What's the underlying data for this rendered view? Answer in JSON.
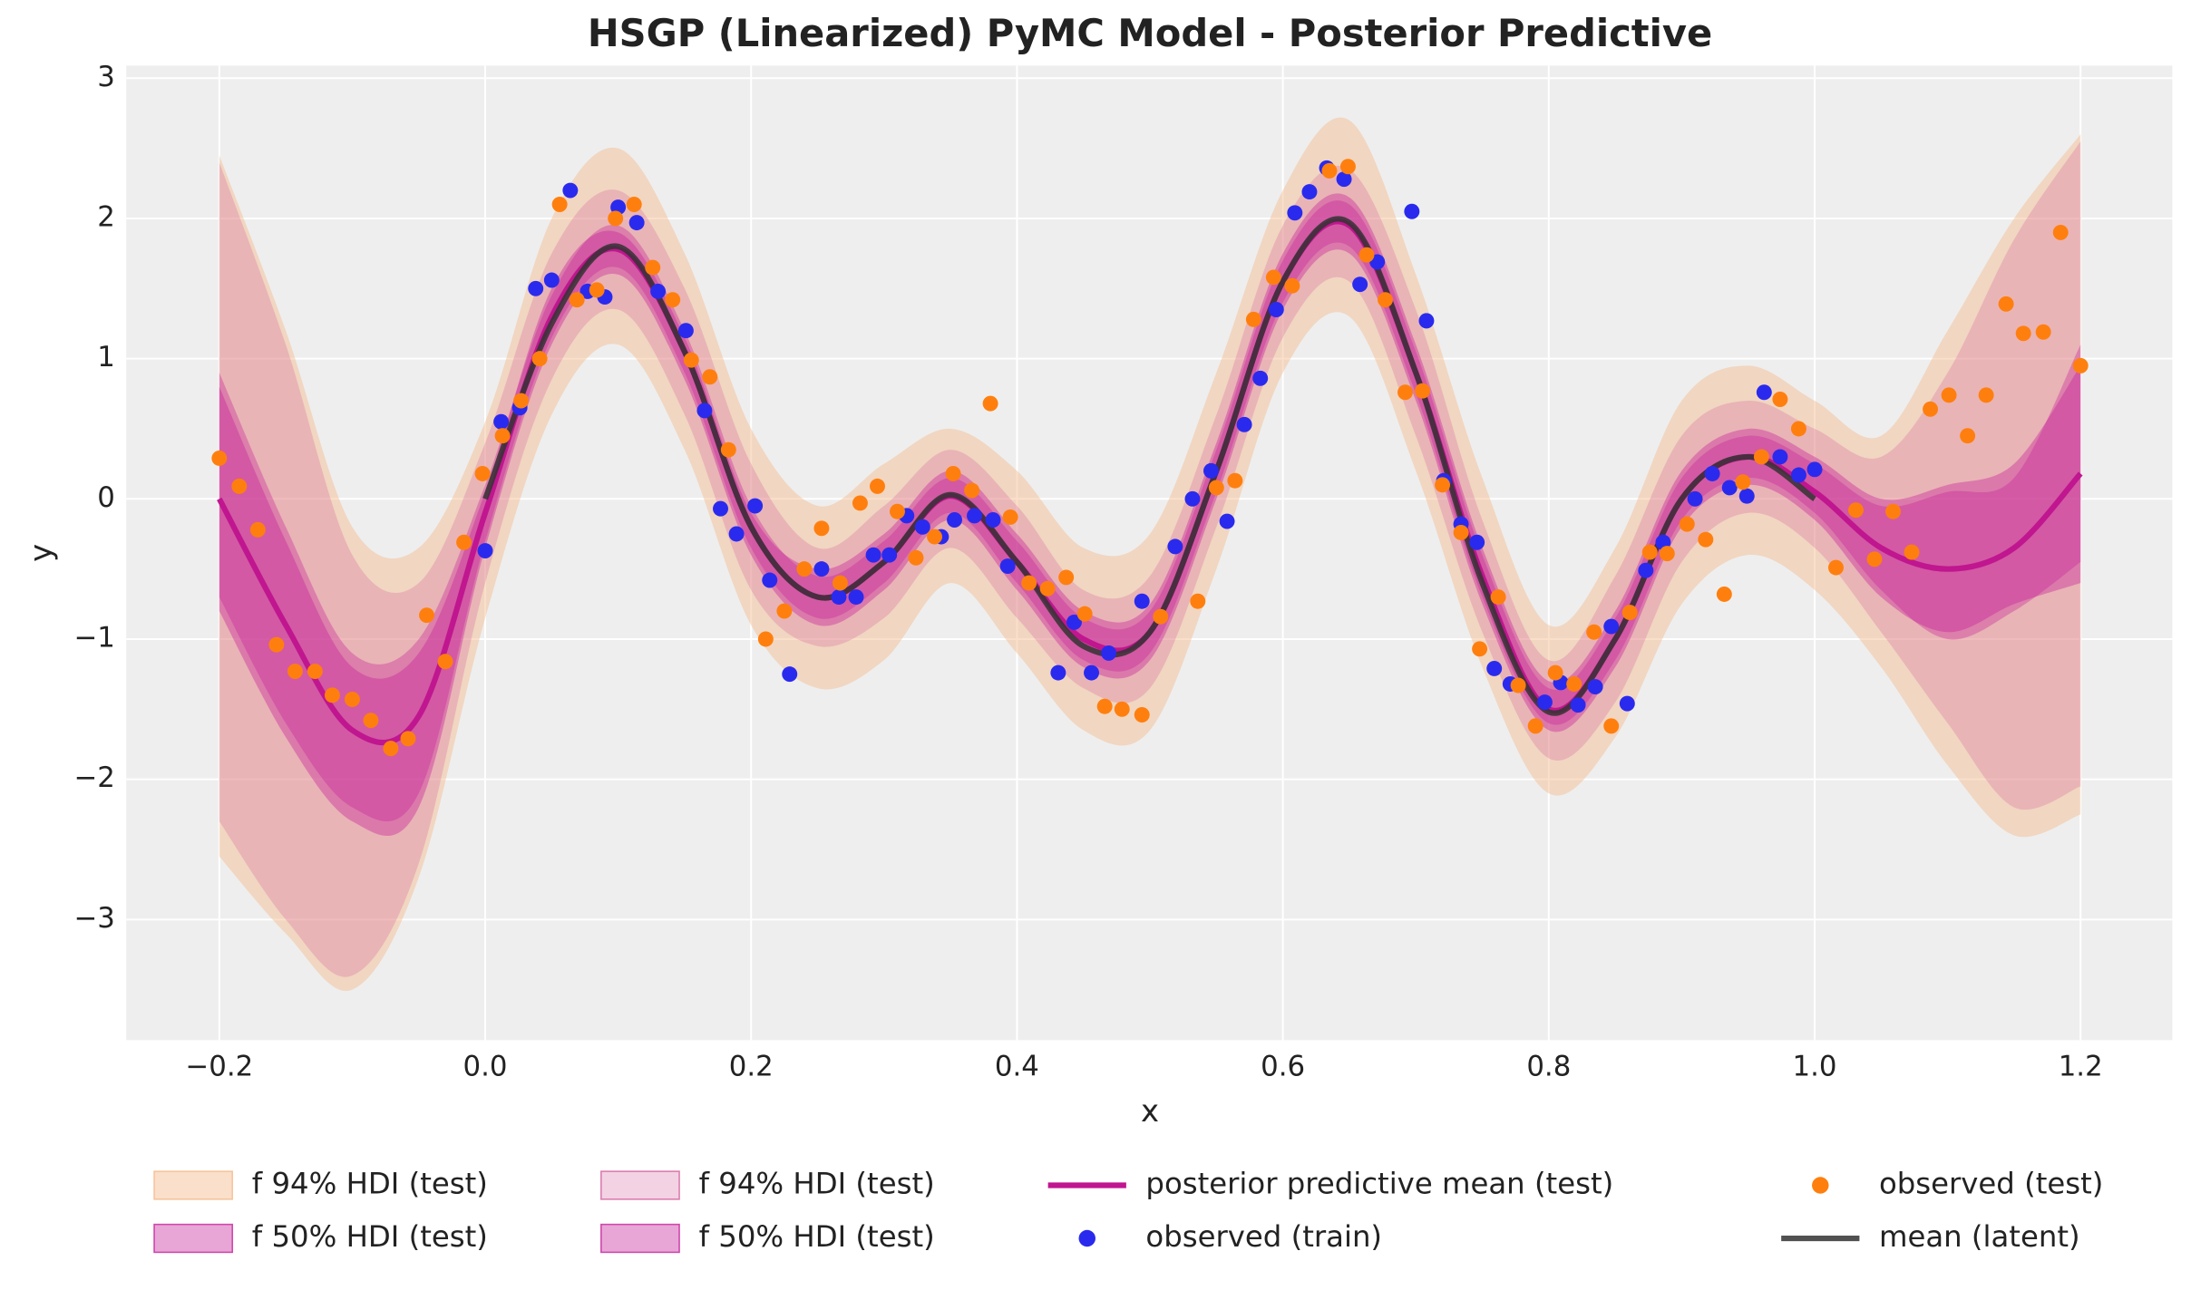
{
  "chart_data": {
    "type": "line",
    "title": "HSGP (Linearized) PyMC Model - Posterior Predictive",
    "xlabel": "x",
    "ylabel": "y",
    "xlim": [
      -0.27,
      1.269
    ],
    "ylim": [
      -3.86,
      3.09
    ],
    "xticks": [
      {
        "value": -0.2,
        "label": "−0.2"
      },
      {
        "value": 0,
        "label": "0.0"
      },
      0.2,
      0.4,
      0.6,
      0.8,
      {
        "value": 1,
        "label": "1.0"
      },
      1.2
    ],
    "yticks": [
      {
        "value": -3,
        "label": "−3"
      },
      {
        "value": -2,
        "label": "−2"
      },
      {
        "value": -1,
        "label": "−1"
      },
      0,
      1,
      2,
      3
    ],
    "grid": true,
    "legend": "bottom",
    "x": [
      -0.2,
      -0.15,
      -0.1,
      -0.05,
      0,
      0.05,
      0.1,
      0.15,
      0.2,
      0.25,
      0.3,
      0.35,
      0.4,
      0.45,
      0.5,
      0.55,
      0.6,
      0.65,
      0.7,
      0.75,
      0.8,
      0.85,
      0.9,
      0.95,
      1.0,
      1.05,
      1.1,
      1.15,
      1.2
    ],
    "series": [
      {
        "name": "f 94% HDI (test)",
        "type": "band",
        "color": "#f5b98a",
        "opacity": 0.45,
        "lower": [
          -2.55,
          -3.1,
          -3.5,
          -2.7,
          -0.85,
          0.6,
          1.1,
          0.35,
          -0.9,
          -1.35,
          -1.15,
          -0.6,
          -1.1,
          -1.65,
          -1.65,
          -0.5,
          0.9,
          1.3,
          0.2,
          -1.2,
          -2.1,
          -1.7,
          -0.75,
          -0.4,
          -0.65,
          -1.2,
          -1.9,
          -2.4,
          -2.25
        ],
        "upper": [
          2.45,
          1.2,
          -0.2,
          -0.35,
          0.55,
          2.0,
          2.5,
          1.75,
          0.5,
          -0.05,
          0.25,
          0.5,
          0.2,
          -0.35,
          -0.25,
          0.9,
          2.2,
          2.7,
          1.6,
          0.15,
          -0.9,
          -0.35,
          0.7,
          0.95,
          0.7,
          0.45,
          1.2,
          2.0,
          2.6
        ]
      },
      {
        "name": "f 50% HDI (test)",
        "type": "band",
        "color": "#c5219a",
        "opacity": 0.4,
        "lower": [
          -0.7,
          -1.6,
          -2.2,
          -2.1,
          -0.3,
          1.15,
          1.65,
          0.9,
          -0.35,
          -0.85,
          -0.6,
          -0.1,
          -0.6,
          -1.15,
          -1.1,
          0.05,
          1.4,
          1.8,
          0.75,
          -0.7,
          -1.6,
          -1.15,
          -0.15,
          0.15,
          -0.1,
          -0.65,
          -1.0,
          -0.8,
          -0.45
        ],
        "upper": [
          0.9,
          -0.2,
          -1.1,
          -1.0,
          0.1,
          1.45,
          1.95,
          1.2,
          -0.05,
          -0.55,
          -0.3,
          0.15,
          -0.3,
          -0.85,
          -0.8,
          0.35,
          1.7,
          2.1,
          1.05,
          -0.4,
          -1.35,
          -0.85,
          0.15,
          0.45,
          0.25,
          -0.05,
          0.05,
          0.15,
          1.1
        ]
      },
      {
        "name": "f 94% HDI (test)",
        "type": "band",
        "color": "#d35f9c",
        "opacity": 0.28,
        "lower": [
          -2.3,
          -3.0,
          -3.4,
          -2.6,
          -0.6,
          0.85,
          1.35,
          0.6,
          -0.65,
          -1.05,
          -0.85,
          -0.35,
          -0.85,
          -1.35,
          -1.35,
          -0.2,
          1.15,
          1.55,
          0.45,
          -0.95,
          -1.85,
          -1.45,
          -0.45,
          -0.1,
          -0.35,
          -0.95,
          -1.6,
          -2.2,
          -2.05
        ],
        "upper": [
          2.4,
          1.1,
          -0.4,
          -0.6,
          0.4,
          1.75,
          2.2,
          1.5,
          0.25,
          -0.35,
          -0.05,
          0.35,
          -0.05,
          -0.65,
          -0.55,
          0.6,
          1.95,
          2.35,
          1.35,
          -0.15,
          -1.15,
          -0.55,
          0.45,
          0.7,
          0.5,
          0.3,
          0.9,
          1.85,
          2.55
        ]
      },
      {
        "name": "f 50% HDI (test)",
        "type": "band",
        "color": "#c5219a",
        "opacity": 0.4,
        "lower": [
          -0.8,
          -1.7,
          -2.3,
          -2.2,
          -0.35,
          1.1,
          1.6,
          0.85,
          -0.4,
          -0.9,
          -0.65,
          -0.15,
          -0.65,
          -1.2,
          -1.15,
          0.0,
          1.35,
          1.75,
          0.7,
          -0.75,
          -1.65,
          -1.2,
          -0.2,
          0.1,
          -0.15,
          -0.7,
          -0.95,
          -0.75,
          -0.6
        ],
        "upper": [
          0.8,
          -0.3,
          -1.2,
          -1.1,
          0.05,
          1.5,
          1.9,
          1.15,
          -0.1,
          -0.5,
          -0.25,
          0.2,
          -0.25,
          -0.8,
          -0.75,
          0.4,
          1.75,
          2.15,
          1.1,
          -0.35,
          -1.3,
          -0.8,
          0.2,
          0.5,
          0.3,
          0.0,
          0.1,
          0.25,
          0.95
        ]
      },
      {
        "name": "posterior predictive mean (test)",
        "type": "line",
        "color": "#c0168f",
        "width": 4,
        "values": [
          0.0,
          -0.9,
          -1.65,
          -1.55,
          -0.1,
          1.3,
          1.78,
          1.05,
          -0.2,
          -0.7,
          -0.45,
          0.02,
          -0.45,
          -1.0,
          -0.95,
          0.2,
          1.55,
          1.95,
          0.9,
          -0.55,
          -1.5,
          -1.0,
          0.0,
          0.3,
          0.05,
          -0.35,
          -0.5,
          -0.35,
          0.18
        ]
      },
      {
        "name": "observed (train)",
        "type": "scatter",
        "color": "#2a2aee",
        "x": [
          0.0,
          0.012,
          0.026,
          0.038,
          0.05,
          0.064,
          0.077,
          0.09,
          0.1,
          0.114,
          0.13,
          0.151,
          0.165,
          0.177,
          0.189,
          0.203,
          0.214,
          0.229,
          0.253,
          0.266,
          0.279,
          0.292,
          0.304,
          0.317,
          0.329,
          0.343,
          0.353,
          0.368,
          0.382,
          0.393,
          0.431,
          0.443,
          0.456,
          0.469,
          0.494,
          0.519,
          0.532,
          0.546,
          0.558,
          0.571,
          0.583,
          0.595,
          0.609,
          0.62,
          0.633,
          0.646,
          0.658,
          0.671,
          0.697,
          0.708,
          0.721,
          0.734,
          0.746,
          0.759,
          0.771,
          0.797,
          0.809,
          0.822,
          0.835,
          0.847,
          0.859,
          0.873,
          0.886,
          0.91,
          0.923,
          0.936,
          0.949,
          0.962,
          0.974,
          0.988,
          1.0
        ],
        "values": [
          -0.37,
          0.55,
          0.65,
          1.5,
          1.56,
          2.2,
          1.48,
          1.44,
          2.08,
          1.97,
          1.48,
          1.2,
          0.63,
          -0.07,
          -0.25,
          -0.05,
          -0.58,
          -1.25,
          -0.5,
          -0.7,
          -0.7,
          -0.4,
          -0.4,
          -0.12,
          -0.2,
          -0.27,
          -0.15,
          -0.12,
          -0.15,
          -0.48,
          -1.24,
          -0.88,
          -1.24,
          -1.1,
          -0.73,
          -0.34,
          0.0,
          0.2,
          -0.16,
          0.53,
          0.86,
          1.35,
          2.04,
          2.19,
          2.36,
          2.28,
          1.53,
          1.69,
          2.05,
          1.27,
          0.13,
          -0.18,
          -0.31,
          -1.21,
          -1.32,
          -1.45,
          -1.31,
          -1.47,
          -1.34,
          -0.91,
          -1.46,
          -0.51,
          -0.31,
          0.0,
          0.18,
          0.08,
          0.02,
          0.76,
          0.3,
          0.17,
          0.21
        ]
      },
      {
        "name": "observed (test)",
        "type": "scatter",
        "color": "#ff7f0e",
        "x": [
          -0.2,
          -0.185,
          -0.171,
          -0.157,
          -0.143,
          -0.128,
          -0.115,
          -0.1,
          -0.086,
          -0.071,
          -0.058,
          -0.044,
          -0.03,
          -0.016,
          -0.002,
          0.013,
          0.027,
          0.041,
          0.056,
          0.069,
          0.084,
          0.098,
          0.112,
          0.126,
          0.141,
          0.155,
          0.169,
          0.183,
          0.211,
          0.225,
          0.24,
          0.253,
          0.267,
          0.282,
          0.295,
          0.31,
          0.324,
          0.338,
          0.352,
          0.366,
          0.38,
          0.395,
          0.409,
          0.423,
          0.437,
          0.451,
          0.466,
          0.479,
          0.494,
          0.508,
          0.536,
          0.55,
          0.564,
          0.578,
          0.593,
          0.607,
          0.635,
          0.649,
          0.663,
          0.677,
          0.692,
          0.705,
          0.72,
          0.734,
          0.748,
          0.762,
          0.777,
          0.79,
          0.805,
          0.819,
          0.834,
          0.847,
          0.861,
          0.876,
          0.889,
          0.904,
          0.918,
          0.932,
          0.946,
          0.96,
          0.974,
          0.988,
          1.016,
          1.031,
          1.045,
          1.059,
          1.073,
          1.087,
          1.101,
          1.115,
          1.129,
          1.144,
          1.157,
          1.172,
          1.185,
          1.2
        ],
        "values": [
          0.29,
          0.09,
          -0.22,
          -1.04,
          -1.23,
          -1.23,
          -1.4,
          -1.43,
          -1.58,
          -1.78,
          -1.71,
          -0.83,
          -1.16,
          -0.31,
          0.18,
          0.45,
          0.7,
          1.0,
          2.1,
          1.42,
          1.49,
          2.0,
          2.1,
          1.65,
          1.42,
          0.99,
          0.87,
          0.35,
          -1.0,
          -0.8,
          -0.5,
          -0.21,
          -0.6,
          -0.03,
          0.09,
          -0.09,
          -0.42,
          -0.27,
          0.18,
          0.06,
          0.68,
          -0.13,
          -0.6,
          -0.64,
          -0.56,
          -0.82,
          -1.48,
          -1.5,
          -1.54,
          -0.84,
          -0.73,
          0.08,
          0.13,
          1.28,
          1.58,
          1.52,
          2.34,
          2.37,
          1.74,
          1.42,
          0.76,
          0.77,
          0.1,
          -0.24,
          -1.07,
          -0.7,
          -1.33,
          -1.62,
          -1.24,
          -1.32,
          -0.95,
          -1.62,
          -0.81,
          -0.38,
          -0.39,
          -0.18,
          -0.29,
          -0.68,
          0.12,
          0.3,
          0.71,
          0.5,
          -0.49,
          -0.08,
          -0.43,
          -0.09,
          -0.38,
          0.64,
          0.74,
          0.45,
          0.74,
          1.39,
          1.18,
          1.19,
          1.9,
          0.95
        ]
      },
      {
        "name": "mean (latent)",
        "type": "line",
        "color": "#333333",
        "opacity": 0.85,
        "width": 4,
        "x": [
          0,
          0.05,
          0.1,
          0.15,
          0.2,
          0.25,
          0.3,
          0.35,
          0.4,
          0.45,
          0.5,
          0.55,
          0.6,
          0.65,
          0.7,
          0.75,
          0.8,
          0.85,
          0.9,
          0.95,
          1.0
        ],
        "values": [
          0.0,
          1.25,
          1.8,
          1.05,
          -0.2,
          -0.7,
          -0.45,
          0.03,
          -0.45,
          -1.05,
          -0.95,
          0.2,
          1.55,
          1.97,
          0.9,
          -0.6,
          -1.52,
          -1.0,
          0.0,
          0.3,
          0.0
        ]
      }
    ]
  }
}
